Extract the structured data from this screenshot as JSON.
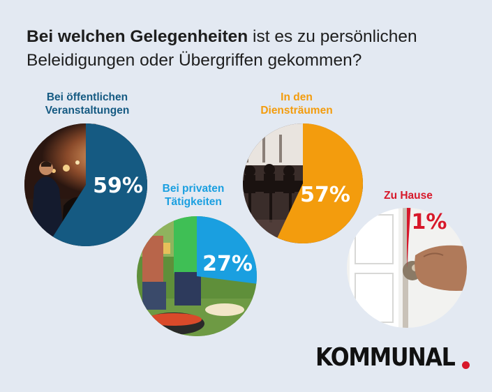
{
  "title": {
    "bold": "Bei welchen Gelegenheiten",
    "rest": " ist es zu persönlichen Beleidigungen oder Übergriffen gekommen?"
  },
  "logo": "KOMMUNAL",
  "colors": {
    "background": "#e3e9f2",
    "public_events": "#155a82",
    "private_activities": "#1a9fe0",
    "office": "#f39c0d",
    "home": "#d7182a",
    "logo_dot": "#d7182a"
  },
  "chart_data": {
    "type": "pie",
    "categories": [
      "Bei öffentlichen Veranstaltungen",
      "Bei privaten Tätigkeiten",
      "In den Diensträumen",
      "Zu Hause"
    ],
    "values": [
      59,
      27,
      57,
      1
    ],
    "value_labels": [
      "59%",
      "27%",
      "57%",
      "1%"
    ],
    "unit": "%",
    "label_lines": [
      [
        "Bei öffentlichen",
        "Veranstaltungen"
      ],
      [
        "Bei privaten",
        "Tätigkeiten"
      ],
      [
        "In den",
        "Diensträumen"
      ],
      [
        "Zu Hause"
      ]
    ],
    "colors": [
      "#155a82",
      "#1a9fe0",
      "#f39c0d",
      "#d7182a"
    ],
    "photo_themes": [
      "conference-audience",
      "barbecue-party",
      "meeting-room-silhouettes",
      "hand-on-door-knob"
    ]
  }
}
